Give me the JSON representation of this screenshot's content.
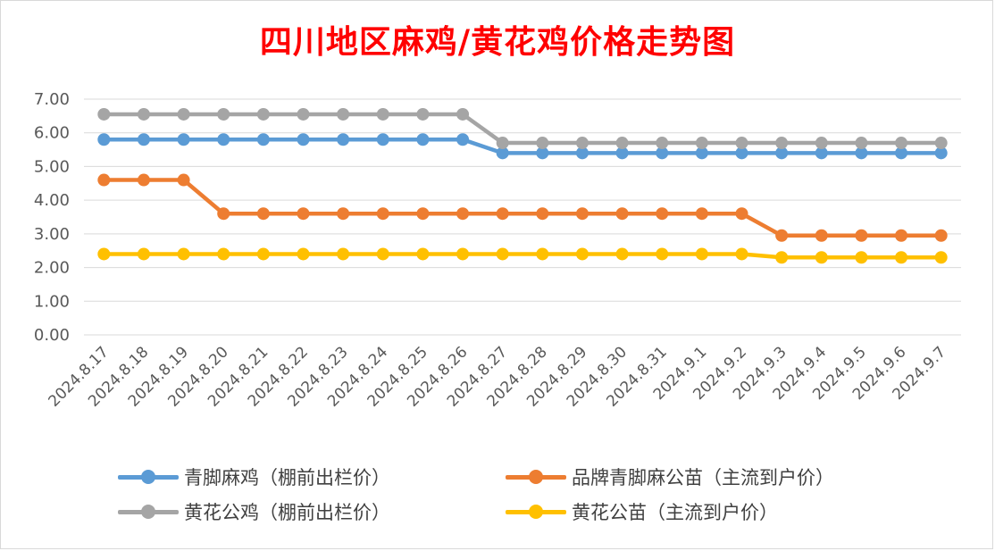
{
  "chart_data": {
    "type": "line",
    "title": "四川地区麻鸡/黄花鸡价格走势图",
    "xlabel": "",
    "ylabel": "",
    "ylim": [
      0,
      7
    ],
    "yticks": [
      "0.00",
      "1.00",
      "2.00",
      "3.00",
      "4.00",
      "5.00",
      "6.00",
      "7.00"
    ],
    "grid": true,
    "legend_position": "bottom",
    "categories": [
      "2024.8.17",
      "2024.8.18",
      "2024.8.19",
      "2024.8.20",
      "2024.8.21",
      "2024.8.22",
      "2024.8.23",
      "2024.8.24",
      "2024.8.25",
      "2024.8.26",
      "2024.8.27",
      "2024.8.28",
      "2024.8.29",
      "2024.8.30",
      "2024.8.31",
      "2024.9.1",
      "2024.9.2",
      "2024.9.3",
      "2024.9.4",
      "2024.9.5",
      "2024.9.6",
      "2024.9.7"
    ],
    "series": [
      {
        "name": "青脚麻鸡（棚前出栏价）",
        "color": "#5b9bd5",
        "values": [
          5.8,
          5.8,
          5.8,
          5.8,
          5.8,
          5.8,
          5.8,
          5.8,
          5.8,
          5.8,
          5.4,
          5.4,
          5.4,
          5.4,
          5.4,
          5.4,
          5.4,
          5.4,
          5.4,
          5.4,
          5.4,
          5.4
        ]
      },
      {
        "name": "品牌青脚麻公苗（主流到户价）",
        "color": "#ed7d31",
        "values": [
          4.6,
          4.6,
          4.6,
          3.6,
          3.6,
          3.6,
          3.6,
          3.6,
          3.6,
          3.6,
          3.6,
          3.6,
          3.6,
          3.6,
          3.6,
          3.6,
          3.6,
          2.95,
          2.95,
          2.95,
          2.95,
          2.95
        ]
      },
      {
        "name": "黄花公鸡（棚前出栏价）",
        "color": "#a5a5a5",
        "values": [
          6.55,
          6.55,
          6.55,
          6.55,
          6.55,
          6.55,
          6.55,
          6.55,
          6.55,
          6.55,
          5.7,
          5.7,
          5.7,
          5.7,
          5.7,
          5.7,
          5.7,
          5.7,
          5.7,
          5.7,
          5.7,
          5.7
        ]
      },
      {
        "name": "黄花公苗（主流到户价）",
        "color": "#ffc000",
        "values": [
          2.4,
          2.4,
          2.4,
          2.4,
          2.4,
          2.4,
          2.4,
          2.4,
          2.4,
          2.4,
          2.4,
          2.4,
          2.4,
          2.4,
          2.4,
          2.4,
          2.4,
          2.3,
          2.3,
          2.3,
          2.3,
          2.3
        ]
      }
    ]
  }
}
